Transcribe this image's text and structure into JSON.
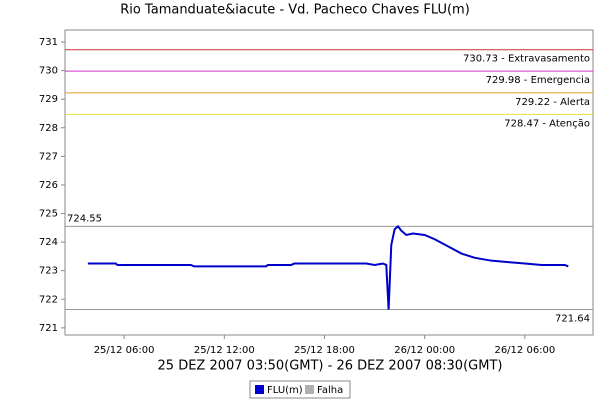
{
  "chart_data": {
    "type": "line",
    "title": "Rio Tamanduate&iacute - Vd. Pacheco Chaves FLU(m)",
    "x_label": "25 DEZ 2007 03:50(GMT) - 26 DEZ 2007 08:30(GMT)",
    "xlim": [
      2.46,
      34.08
    ],
    "ylim": [
      720.75,
      731.42
    ],
    "xticks": [
      {
        "value": 6,
        "label": "25/12 06:00"
      },
      {
        "value": 12,
        "label": "25/12 12:00"
      },
      {
        "value": 18,
        "label": "25/12 18:00"
      },
      {
        "value": 24,
        "label": "26/12 00:00"
      },
      {
        "value": 30,
        "label": "26/12 06:00"
      }
    ],
    "yticks": [
      721,
      722,
      723,
      724,
      725,
      726,
      727,
      728,
      729,
      730,
      731
    ],
    "thresholds": [
      {
        "value": 730.73,
        "label": "730.73 - Extravasamento",
        "color": "#cc3333"
      },
      {
        "value": 729.98,
        "label": "729.98 - Emergencia",
        "color": "#cc33cc"
      },
      {
        "value": 729.22,
        "label": "729.22 - Alerta",
        "color": "#e0a020"
      },
      {
        "value": 728.47,
        "label": "728.47 - Atenção",
        "color": "#e8e040"
      }
    ],
    "max_line": {
      "value": 724.55,
      "color": "#999999"
    },
    "min_line": {
      "value": 721.64,
      "color": "#999999"
    },
    "x": [
      3.83,
      5.5,
      5.6,
      10,
      10.2,
      14.5,
      14.6,
      16,
      16.2,
      20.5,
      21,
      21.5,
      21.7,
      21.84,
      22.0,
      22.2,
      22.4,
      22.6,
      22.9,
      23.3,
      24,
      24.6,
      25.4,
      26.2,
      27,
      28,
      29,
      30,
      31,
      32.4,
      32.6
    ],
    "series": [
      {
        "name": "FLU(m)",
        "color": "#0000cc",
        "values": [
          723.25,
          723.25,
          723.2,
          723.2,
          723.15,
          723.15,
          723.2,
          723.2,
          723.25,
          723.25,
          723.2,
          723.25,
          723.2,
          721.64,
          723.9,
          724.45,
          724.55,
          724.4,
          724.25,
          724.3,
          724.25,
          724.1,
          723.85,
          723.6,
          723.45,
          723.35,
          723.3,
          723.25,
          723.2,
          723.2,
          723.15
        ]
      },
      {
        "name": "Falha",
        "color": "#b0b0b0",
        "values": [
          null,
          null,
          null,
          null,
          null,
          null,
          null,
          null,
          null,
          null,
          null,
          null,
          null,
          null,
          null,
          null,
          null,
          null,
          null,
          null,
          null,
          null,
          null,
          null,
          null,
          null,
          null,
          null,
          null,
          null,
          null
        ]
      }
    ]
  }
}
